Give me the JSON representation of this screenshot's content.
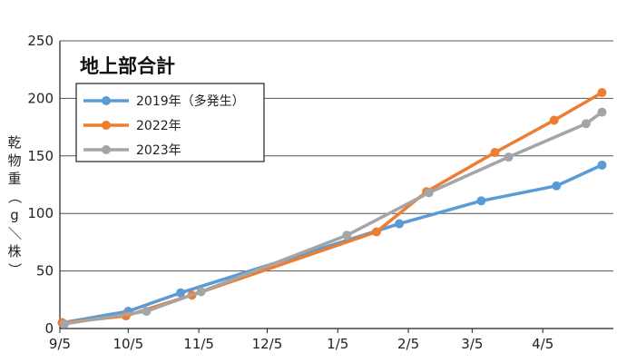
{
  "chart_data": {
    "type": "line",
    "title": "地上部合計",
    "ylabel": "乾物重（g／株）",
    "ylim": [
      0,
      250
    ],
    "yticks": [
      0,
      50,
      100,
      150,
      200,
      250
    ],
    "x_tick_labels": [
      "9/5",
      "10/5",
      "11/5",
      "12/5",
      "1/5",
      "2/5",
      "3/5",
      "4/5"
    ],
    "x_tick_dates": [
      "2000-09-05",
      "2000-10-05",
      "2000-11-05",
      "2000-12-05",
      "2001-01-05",
      "2001-02-05",
      "2001-03-05",
      "2001-04-05"
    ],
    "xlim": [
      "2000-09-05",
      "2001-05-06"
    ],
    "grid": true,
    "legend_position": "top-left",
    "series": [
      {
        "name": "2019年（多発生）",
        "color": "#5B9BD5",
        "points": [
          {
            "x": "2000-09-06",
            "y": 5
          },
          {
            "x": "2000-10-05",
            "y": 15
          },
          {
            "x": "2000-10-28",
            "y": 31
          },
          {
            "x": "2001-02-01",
            "y": 91
          },
          {
            "x": "2001-03-09",
            "y": 111
          },
          {
            "x": "2001-04-11",
            "y": 124
          },
          {
            "x": "2001-05-01",
            "y": 142
          }
        ]
      },
      {
        "name": "2022年",
        "color": "#ED7D31",
        "points": [
          {
            "x": "2000-09-06",
            "y": 5
          },
          {
            "x": "2000-10-04",
            "y": 11
          },
          {
            "x": "2000-11-02",
            "y": 29
          },
          {
            "x": "2001-01-22",
            "y": 84
          },
          {
            "x": "2001-02-13",
            "y": 119
          },
          {
            "x": "2001-03-15",
            "y": 153
          },
          {
            "x": "2001-04-10",
            "y": 181
          },
          {
            "x": "2001-05-01",
            "y": 205
          }
        ]
      },
      {
        "name": "2023年",
        "color": "#A5A5A5",
        "points": [
          {
            "x": "2000-09-07",
            "y": 4
          },
          {
            "x": "2000-10-13",
            "y": 15
          },
          {
            "x": "2000-11-06",
            "y": 32
          },
          {
            "x": "2001-01-09",
            "y": 81
          },
          {
            "x": "2001-02-14",
            "y": 118
          },
          {
            "x": "2001-03-21",
            "y": 149
          },
          {
            "x": "2001-04-24",
            "y": 178
          },
          {
            "x": "2001-05-01",
            "y": 188
          }
        ]
      }
    ]
  }
}
